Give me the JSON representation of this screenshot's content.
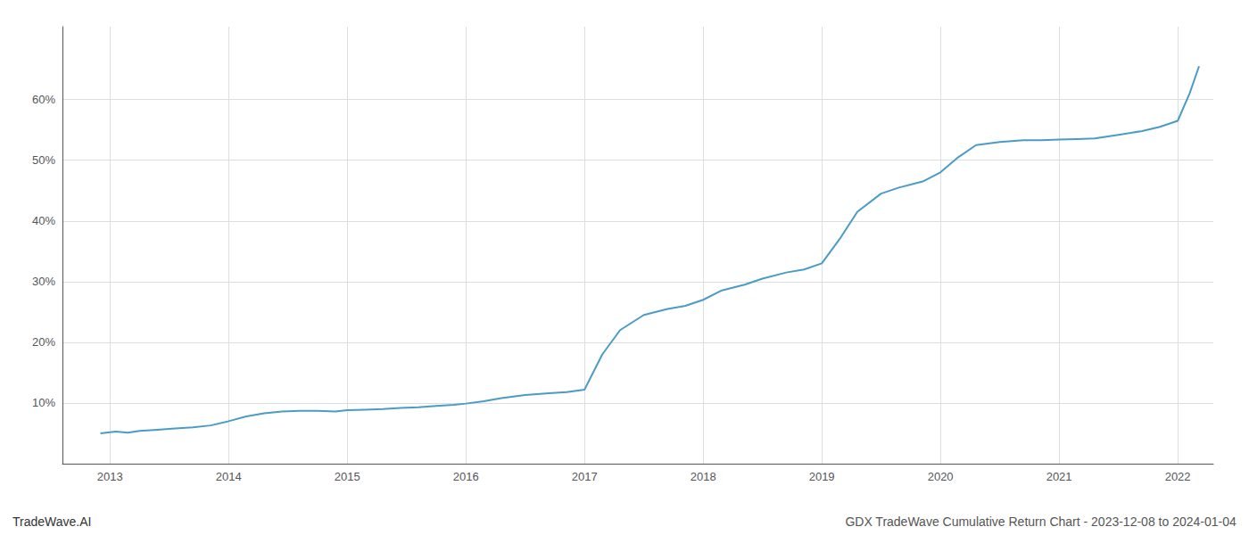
{
  "chart_data": {
    "type": "line",
    "annotations": [
      "TradeWave.AI",
      "GDX TradeWave Cumulative Return Chart - 2023-12-08 to 2024-01-04"
    ],
    "color": "#4a9cc7",
    "grid": true,
    "x": [
      2012.92,
      2013.05,
      2013.15,
      2013.25,
      2013.4,
      2013.55,
      2013.7,
      2013.85,
      2014.0,
      2014.15,
      2014.3,
      2014.45,
      2014.6,
      2014.75,
      2014.9,
      2015.0,
      2015.15,
      2015.3,
      2015.45,
      2015.6,
      2015.75,
      2015.9,
      2016.0,
      2016.15,
      2016.3,
      2016.5,
      2016.7,
      2016.85,
      2017.0,
      2017.15,
      2017.3,
      2017.5,
      2017.7,
      2017.85,
      2018.0,
      2018.15,
      2018.35,
      2018.5,
      2018.7,
      2018.85,
      2019.0,
      2019.15,
      2019.3,
      2019.5,
      2019.65,
      2019.85,
      2020.0,
      2020.15,
      2020.3,
      2020.5,
      2020.7,
      2020.85,
      2021.0,
      2021.15,
      2021.3,
      2021.5,
      2021.7,
      2021.85,
      2022.0,
      2022.1,
      2022.18
    ],
    "values": [
      5.0,
      5.3,
      5.1,
      5.4,
      5.6,
      5.8,
      6.0,
      6.3,
      7.0,
      7.8,
      8.3,
      8.6,
      8.7,
      8.7,
      8.6,
      8.8,
      8.9,
      9.0,
      9.2,
      9.3,
      9.5,
      9.7,
      9.9,
      10.3,
      10.8,
      11.3,
      11.6,
      11.8,
      12.2,
      18.0,
      22.0,
      24.5,
      25.5,
      26.0,
      27.0,
      28.5,
      29.5,
      30.5,
      31.5,
      32.0,
      33.0,
      37.0,
      41.5,
      44.5,
      45.5,
      46.5,
      48.0,
      50.5,
      52.5,
      53.0,
      53.3,
      53.3,
      53.4,
      53.5,
      53.6,
      54.2,
      54.8,
      55.5,
      56.5,
      61.0,
      65.5
    ],
    "xlim": [
      2012.6,
      2022.3
    ],
    "xticks": [
      2013,
      2014,
      2015,
      2016,
      2017,
      2018,
      2019,
      2020,
      2021,
      2022
    ],
    "ylim": [
      0,
      72
    ],
    "yticks": [
      {
        "value": 10,
        "label": "10%"
      },
      {
        "value": 20,
        "label": "20%"
      },
      {
        "value": 30,
        "label": "30%"
      },
      {
        "value": 40,
        "label": "40%"
      },
      {
        "value": 50,
        "label": "50%"
      },
      {
        "value": 60,
        "label": "60%"
      }
    ]
  }
}
